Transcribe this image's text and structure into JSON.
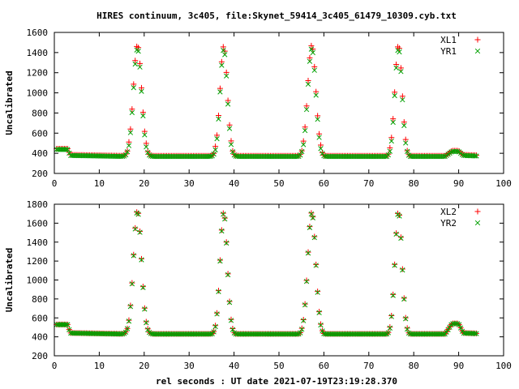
{
  "title": "HIRES continuum, 3c405, file:Skynet_59414_3c405_61479_10309.cyb.txt",
  "xlabel": "rel seconds : UT date 2021-07-19T23:19:28.370",
  "colors": {
    "series_a": "#ff0000",
    "series_b": "#00a000",
    "frame": "#000000"
  },
  "chart_data": [
    {
      "type": "scatter",
      "ylabel": "Uncalibrated",
      "xlim": [
        0,
        100
      ],
      "ylim": [
        200,
        1600
      ],
      "xticks": [
        0,
        10,
        20,
        30,
        40,
        50,
        60,
        70,
        80,
        90,
        100
      ],
      "yticks": [
        200,
        400,
        600,
        800,
        1000,
        1200,
        1400,
        1600
      ],
      "grid": false,
      "legend_position": "top-right",
      "baseline": [
        [
          0,
          440
        ],
        [
          3,
          440
        ],
        [
          3.5,
          380
        ],
        [
          16,
          370
        ],
        [
          20.5,
          370
        ],
        [
          21,
          355
        ],
        [
          35,
          358
        ],
        [
          35.5,
          370
        ],
        [
          39.5,
          370
        ],
        [
          40,
          350
        ],
        [
          54,
          350
        ],
        [
          54.5,
          365
        ],
        [
          59,
          365
        ],
        [
          59.5,
          355
        ],
        [
          74,
          355
        ],
        [
          74.5,
          365
        ],
        [
          78.5,
          365
        ],
        [
          79,
          365
        ],
        [
          87,
          370
        ],
        [
          88.5,
          420
        ],
        [
          90,
          420
        ],
        [
          91,
          380
        ],
        [
          94,
          375
        ]
      ],
      "peaks": [
        [
          18.5,
          1450,
          0.9
        ],
        [
          37.7,
          1440,
          0.8
        ],
        [
          57.3,
          1450,
          0.9
        ],
        [
          76.6,
          1450,
          0.8
        ]
      ],
      "series": [
        {
          "name": "XL1",
          "marker": "plus",
          "color": "#ff0000",
          "offset": 25
        },
        {
          "name": "YR1",
          "marker": "cross",
          "color": "#00a000",
          "offset": -10
        }
      ]
    },
    {
      "type": "scatter",
      "ylabel": "Uncalibrated",
      "xlim": [
        0,
        100
      ],
      "ylim": [
        200,
        1800
      ],
      "xticks": [
        0,
        10,
        20,
        30,
        40,
        50,
        60,
        70,
        80,
        90,
        100
      ],
      "yticks": [
        200,
        400,
        600,
        800,
        1000,
        1200,
        1400,
        1600,
        1800
      ],
      "grid": false,
      "legend_position": "top-right",
      "baseline": [
        [
          0,
          530
        ],
        [
          3,
          530
        ],
        [
          3.5,
          440
        ],
        [
          16,
          430
        ],
        [
          20.5,
          430
        ],
        [
          21,
          410
        ],
        [
          35,
          415
        ],
        [
          35.5,
          425
        ],
        [
          39.5,
          425
        ],
        [
          40,
          400
        ],
        [
          54,
          400
        ],
        [
          54.5,
          420
        ],
        [
          59,
          420
        ],
        [
          59.5,
          410
        ],
        [
          74,
          410
        ],
        [
          74.5,
          420
        ],
        [
          78.5,
          420
        ],
        [
          79,
          425
        ],
        [
          87,
          430
        ],
        [
          88.5,
          540
        ],
        [
          90,
          540
        ],
        [
          91,
          440
        ],
        [
          94,
          435
        ]
      ],
      "peaks": [
        [
          18.5,
          1730,
          0.9
        ],
        [
          37.7,
          1710,
          0.8
        ],
        [
          57.3,
          1710,
          0.9
        ],
        [
          76.6,
          1720,
          0.8
        ]
      ],
      "series": [
        {
          "name": "XL2",
          "marker": "plus",
          "color": "#ff0000",
          "offset": 5
        },
        {
          "name": "YR2",
          "marker": "cross",
          "color": "#00a000",
          "offset": -5
        }
      ]
    }
  ]
}
